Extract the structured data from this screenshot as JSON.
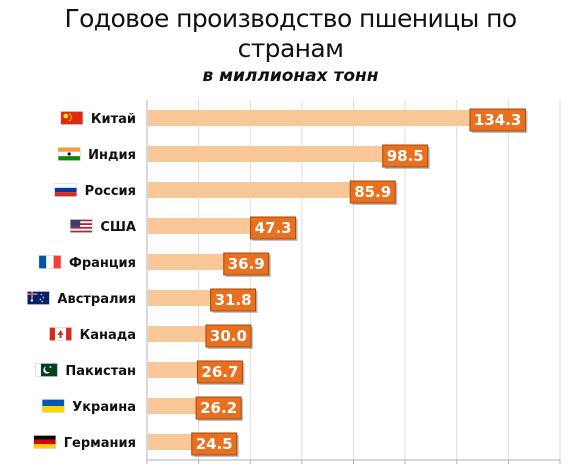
{
  "chart_data": {
    "type": "bar",
    "orientation": "horizontal",
    "title": "Годовое производство пшеницы по странам",
    "title_lines": [
      "Годовое производство пшеницы по",
      "странам"
    ],
    "subtitle": "в миллионах тонн",
    "categories": [
      "Китай",
      "Индия",
      "Россия",
      "США",
      "Франция",
      "Австралия",
      "Канада",
      "Пакистан",
      "Украина",
      "Германия"
    ],
    "flags": [
      "china-flag",
      "india-flag",
      "russia-flag",
      "usa-flag",
      "france-flag",
      "australia-flag",
      "canada-flag",
      "pakistan-flag",
      "ukraine-flag",
      "germany-flag"
    ],
    "values": [
      134.3,
      98.5,
      85.9,
      47.3,
      36.9,
      31.8,
      30.0,
      26.7,
      26.2,
      24.5
    ],
    "value_labels": [
      "134.3",
      "98.5",
      "85.9",
      "47.3",
      "36.9",
      "31.8",
      "30.0",
      "26.7",
      "26.2",
      "24.5"
    ],
    "xlim": [
      0,
      160
    ],
    "grid": true,
    "colors": {
      "bar": "#fac898",
      "label_bg": "#e8701f",
      "label_border": "#a34a0e",
      "grid": "#dcdcdc"
    }
  }
}
